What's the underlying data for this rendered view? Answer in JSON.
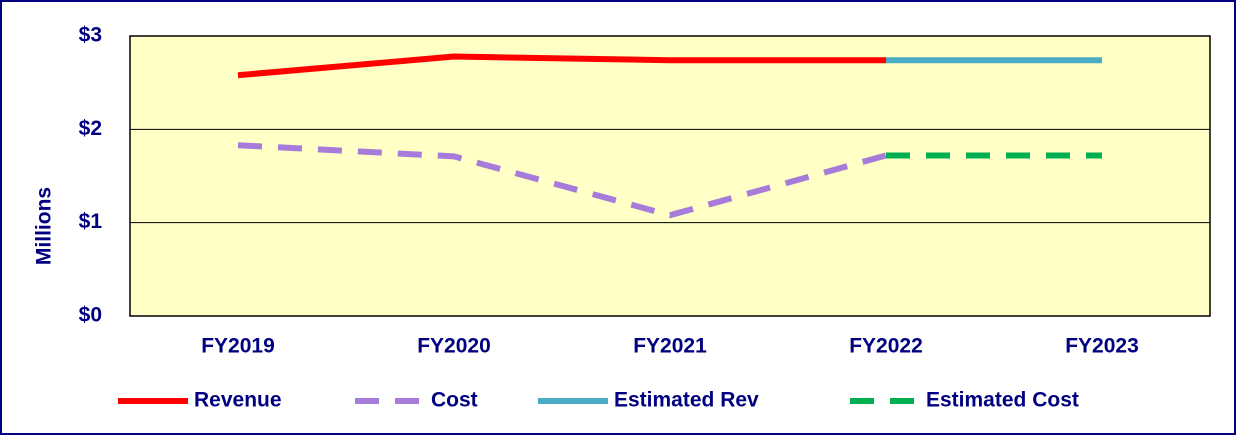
{
  "chart_data": {
    "type": "line",
    "y_label": "Millions",
    "categories": [
      "FY2019",
      "FY2020",
      "FY2021",
      "FY2022",
      "FY2023"
    ],
    "series": [
      {
        "name": "Revenue",
        "color": "#ff0000",
        "dashed": false,
        "values": [
          2.58,
          2.78,
          2.74,
          2.74,
          null
        ]
      },
      {
        "name": "Cost",
        "color": "#a77bd9",
        "dashed": true,
        "values": [
          1.83,
          1.71,
          1.08,
          1.72,
          null
        ]
      },
      {
        "name": "Estimated Rev",
        "color": "#4bacc6",
        "dashed": false,
        "values": [
          null,
          null,
          null,
          2.74,
          2.74
        ]
      },
      {
        "name": "Estimated Cost",
        "color": "#00b050",
        "dashed": true,
        "values": [
          null,
          null,
          null,
          1.72,
          1.72
        ]
      }
    ],
    "ylim": [
      0,
      3
    ],
    "yticks": [
      {
        "value": 0,
        "label": "$0"
      },
      {
        "value": 1,
        "label": "$1"
      },
      {
        "value": 2,
        "label": "$2"
      },
      {
        "value": 3,
        "label": "$3"
      }
    ],
    "grid": true,
    "legend": "bottom"
  }
}
